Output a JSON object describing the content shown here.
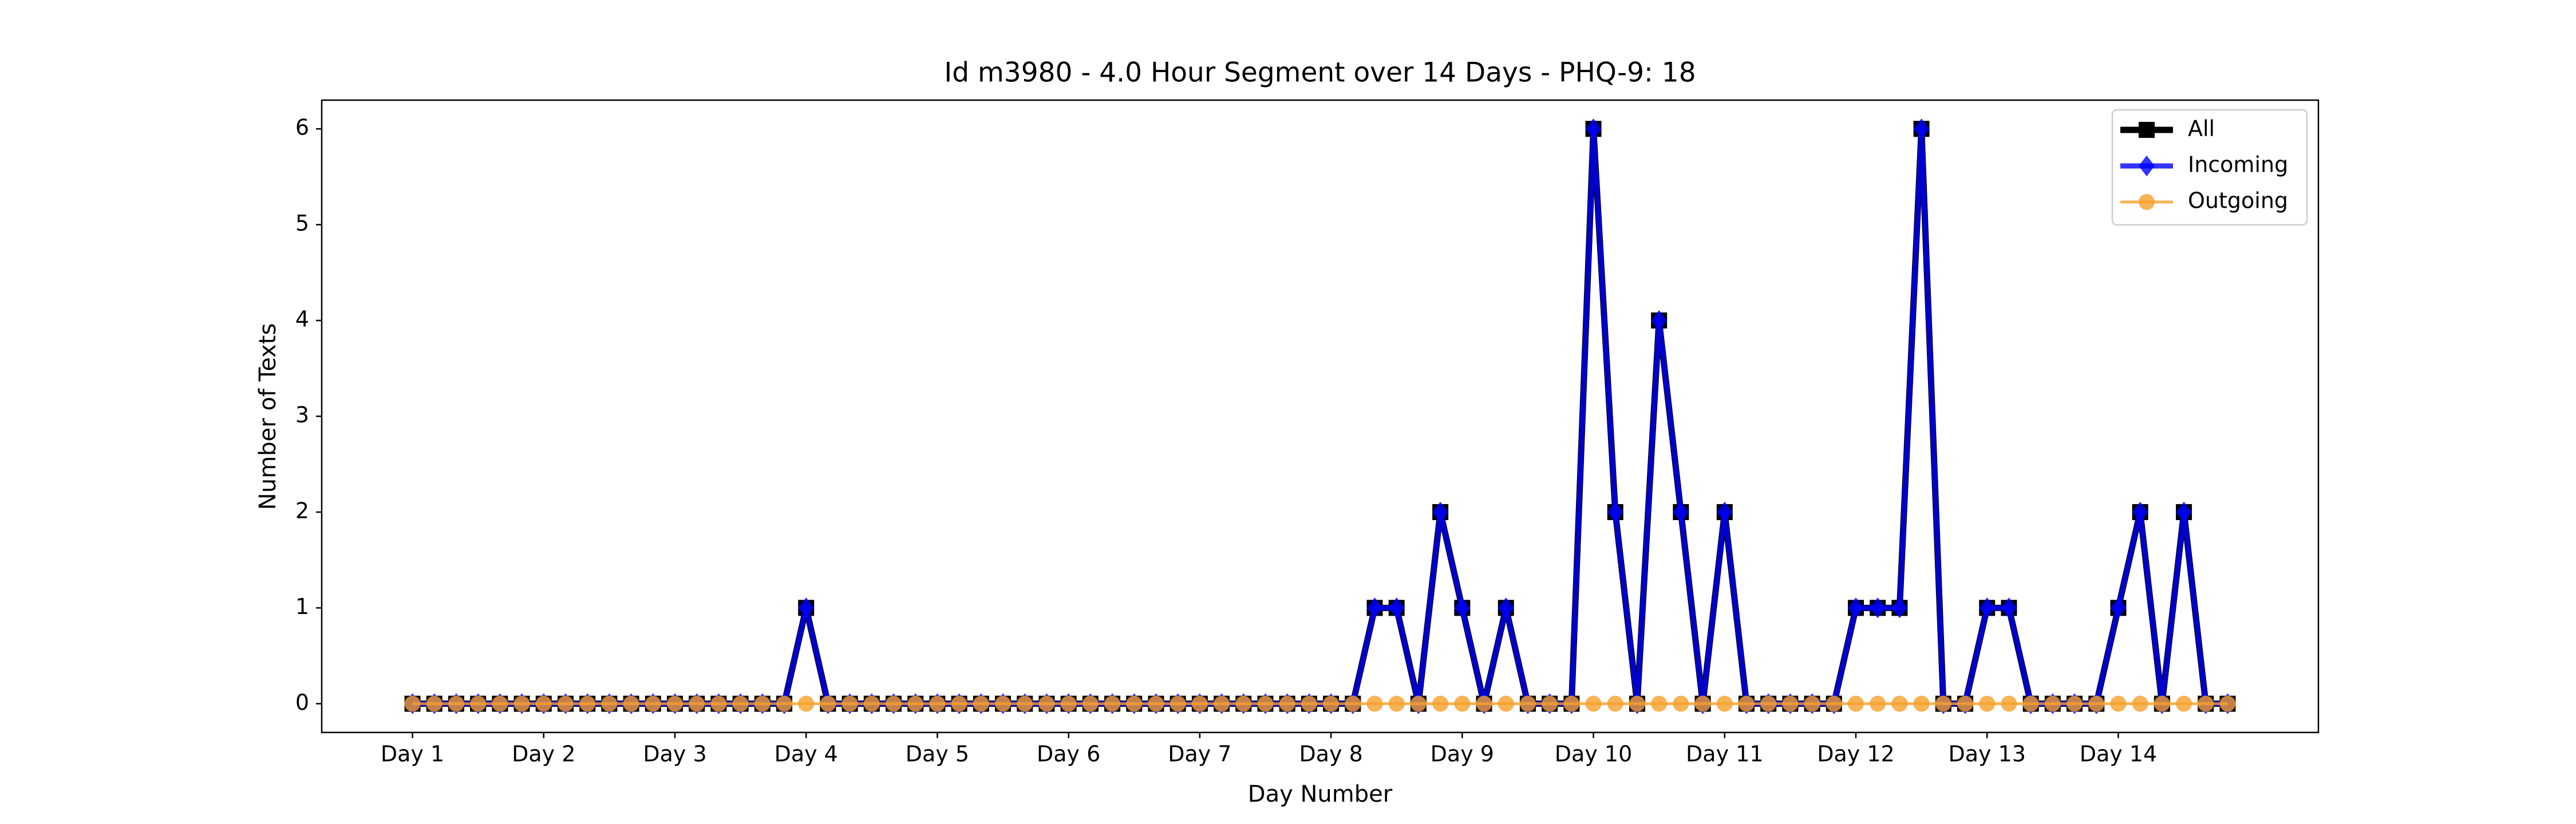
{
  "chart_data": {
    "type": "line",
    "title": "Id m3980 - 4.0 Hour Segment over 14 Days - PHQ-9: 18",
    "x_label": "Day Number",
    "y_label": "Number of Texts",
    "categories": [
      "Day 1",
      null,
      null,
      null,
      null,
      null,
      "Day 2",
      null,
      null,
      null,
      null,
      null,
      "Day 3",
      null,
      null,
      null,
      null,
      null,
      "Day 4",
      null,
      null,
      null,
      null,
      null,
      "Day 5",
      null,
      null,
      null,
      null,
      null,
      "Day 6",
      null,
      null,
      null,
      null,
      null,
      "Day 7",
      null,
      null,
      null,
      null,
      null,
      "Day 8",
      null,
      null,
      null,
      null,
      null,
      "Day 9",
      null,
      null,
      null,
      null,
      null,
      "Day 10",
      null,
      null,
      null,
      null,
      null,
      "Day 11",
      null,
      null,
      null,
      null,
      null,
      "Day 12",
      null,
      null,
      null,
      null,
      null,
      "Day 13",
      null,
      null,
      null,
      null,
      null,
      "Day 14",
      null,
      null,
      null,
      null,
      null
    ],
    "series": [
      {
        "name": "All",
        "color": "#000000",
        "marker": "square",
        "values": [
          0,
          0,
          0,
          0,
          0,
          0,
          0,
          0,
          0,
          0,
          0,
          0,
          0,
          0,
          0,
          0,
          0,
          0,
          1,
          0,
          0,
          0,
          0,
          0,
          0,
          0,
          0,
          0,
          0,
          0,
          0,
          0,
          0,
          0,
          0,
          0,
          0,
          0,
          0,
          0,
          0,
          0,
          0,
          0,
          1,
          1,
          0,
          2,
          1,
          0,
          1,
          0,
          0,
          0,
          6,
          2,
          0,
          4,
          2,
          0,
          2,
          0,
          0,
          0,
          0,
          0,
          1,
          1,
          1,
          6,
          0,
          0,
          1,
          1,
          0,
          0,
          0,
          0,
          1,
          2,
          0,
          2,
          0,
          0
        ]
      },
      {
        "name": "Incoming",
        "color": "#0000ff",
        "marker": "diamond",
        "values": [
          0,
          0,
          0,
          0,
          0,
          0,
          0,
          0,
          0,
          0,
          0,
          0,
          0,
          0,
          0,
          0,
          0,
          0,
          1,
          0,
          0,
          0,
          0,
          0,
          0,
          0,
          0,
          0,
          0,
          0,
          0,
          0,
          0,
          0,
          0,
          0,
          0,
          0,
          0,
          0,
          0,
          0,
          0,
          0,
          1,
          1,
          0,
          2,
          1,
          0,
          1,
          0,
          0,
          0,
          6,
          2,
          0,
          4,
          2,
          0,
          2,
          0,
          0,
          0,
          0,
          0,
          1,
          1,
          1,
          6,
          0,
          0,
          1,
          1,
          0,
          0,
          0,
          0,
          1,
          2,
          0,
          2,
          0,
          0
        ]
      },
      {
        "name": "Outgoing",
        "color": "#f5a02c",
        "marker": "circle",
        "values": [
          0,
          0,
          0,
          0,
          0,
          0,
          0,
          0,
          0,
          0,
          0,
          0,
          0,
          0,
          0,
          0,
          0,
          0,
          0,
          0,
          0,
          0,
          0,
          0,
          0,
          0,
          0,
          0,
          0,
          0,
          0,
          0,
          0,
          0,
          0,
          0,
          0,
          0,
          0,
          0,
          0,
          0,
          0,
          0,
          0,
          0,
          0,
          0,
          0,
          0,
          0,
          0,
          0,
          0,
          0,
          0,
          0,
          0,
          0,
          0,
          0,
          0,
          0,
          0,
          0,
          0,
          0,
          0,
          0,
          0,
          0,
          0,
          0,
          0,
          0,
          0,
          0,
          0,
          0,
          0,
          0,
          0,
          0,
          0
        ]
      }
    ],
    "ylim": [
      -0.3,
      6.3
    ],
    "yticks": [
      0,
      1,
      2,
      3,
      4,
      5,
      6
    ],
    "grid": false,
    "legend": "upper right"
  }
}
